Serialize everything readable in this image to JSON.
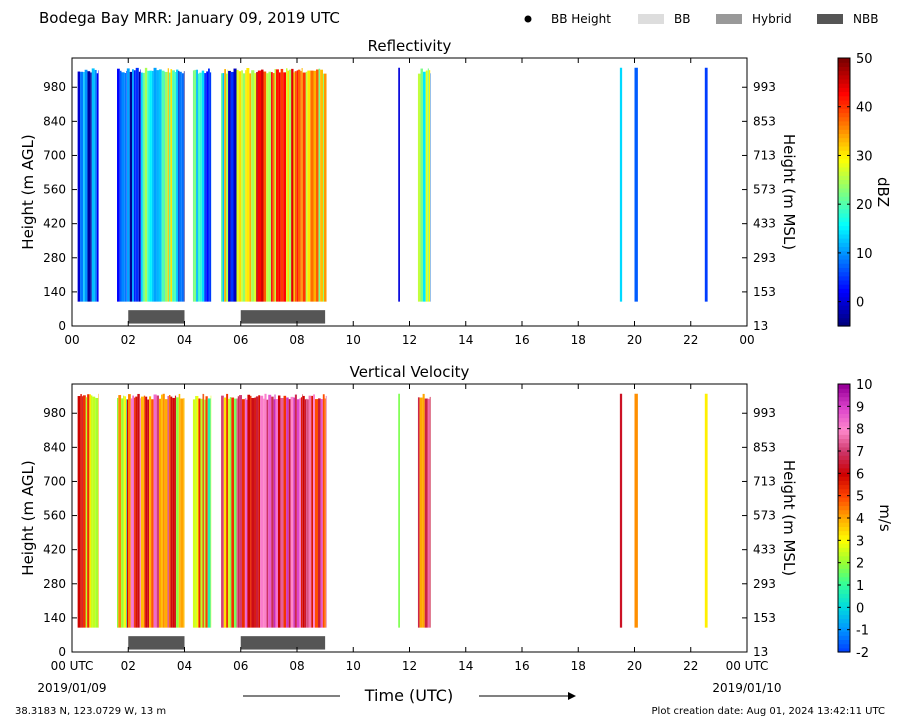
{
  "header": {
    "title": "Bodega Bay MRR:  January 09, 2019 UTC",
    "legend": [
      {
        "name": "BB Height",
        "kind": "dot",
        "color": "#000000"
      },
      {
        "name": "BB",
        "kind": "box",
        "color": "#dddddd"
      },
      {
        "name": "Hybrid",
        "kind": "box",
        "color": "#999999"
      },
      {
        "name": "NBB",
        "kind": "box",
        "color": "#555555"
      }
    ]
  },
  "footer": {
    "location": "38.3183 N, 123.0729 W, 13 m",
    "created": "Plot creation date: Aug 01, 2024 13:42:11 UTC",
    "xlabel": "Time (UTC)",
    "start_date": "2019/01/09",
    "end_date": "2019/01/10"
  },
  "chart_data": [
    {
      "type": "heatmap",
      "title": "Reflectivity",
      "ylabel": "Height (m AGL)",
      "ylabel_right": "Height (m MSL)",
      "colorbar_label": "dBZ",
      "xlim": [
        0,
        24
      ],
      "ylim": [
        0,
        1100
      ],
      "x_ticks": [
        "00",
        "02",
        "04",
        "06",
        "08",
        "10",
        "12",
        "14",
        "16",
        "18",
        "20",
        "22",
        "00"
      ],
      "y_ticks": [
        0,
        140,
        280,
        420,
        560,
        700,
        840,
        980
      ],
      "y_ticks_right": [
        "13",
        "153",
        "293",
        "433",
        "573",
        "713",
        "853",
        "993"
      ],
      "colorbar_range": [
        -5,
        50
      ],
      "colorbar_ticks": [
        0,
        10,
        20,
        30,
        40,
        50
      ],
      "colormap": [
        "#00007f",
        "#0000ff",
        "#007fff",
        "#00ffff",
        "#7fff7f",
        "#ffff00",
        "#ff7f00",
        "#ff0000",
        "#7f0000"
      ],
      "data_height_range": [
        100,
        1060
      ],
      "rain_bands": [
        {
          "start": 0.2,
          "end": 0.95,
          "value": 4
        },
        {
          "start": 1.6,
          "end": 1.95,
          "value": 10
        },
        {
          "start": 1.95,
          "end": 2.45,
          "value": 6
        },
        {
          "start": 2.45,
          "end": 2.9,
          "value": 20
        },
        {
          "start": 2.9,
          "end": 3.3,
          "value": 8
        },
        {
          "start": 3.3,
          "end": 3.7,
          "value": 22
        },
        {
          "start": 3.7,
          "end": 4.0,
          "value": 4
        },
        {
          "start": 4.3,
          "end": 4.7,
          "value": 18
        },
        {
          "start": 4.7,
          "end": 4.95,
          "value": 14
        },
        {
          "start": 5.3,
          "end": 5.55,
          "value": 22
        },
        {
          "start": 5.55,
          "end": 5.85,
          "value": 4
        },
        {
          "start": 5.85,
          "end": 6.2,
          "value": 28
        },
        {
          "start": 6.2,
          "end": 7.2,
          "value": 36
        },
        {
          "start": 7.2,
          "end": 8.2,
          "value": 35
        },
        {
          "start": 8.2,
          "end": 9.05,
          "value": 33
        },
        {
          "start": 11.6,
          "end": 11.66,
          "value": -2
        },
        {
          "start": 12.3,
          "end": 12.75,
          "value": 18
        },
        {
          "start": 19.48,
          "end": 19.56,
          "value": 14
        },
        {
          "start": 20.0,
          "end": 20.12,
          "value": 6
        },
        {
          "start": 22.5,
          "end": 22.6,
          "value": 2
        }
      ],
      "bright_band": [
        {
          "start": 2.0,
          "end": 4.0,
          "type": "NBB"
        },
        {
          "start": 6.0,
          "end": 9.0,
          "type": "NBB"
        }
      ]
    },
    {
      "type": "heatmap",
      "title": "Vertical Velocity",
      "ylabel": "Height (m AGL)",
      "ylabel_right": "Height (m MSL)",
      "colorbar_label": "m/s",
      "xlim": [
        0,
        24
      ],
      "ylim": [
        0,
        1100
      ],
      "x_ticks": [
        "00 UTC",
        "02",
        "04",
        "06",
        "08",
        "10",
        "12",
        "14",
        "16",
        "18",
        "20",
        "22",
        "00 UTC"
      ],
      "y_ticks": [
        0,
        140,
        280,
        420,
        560,
        700,
        840,
        980
      ],
      "y_ticks_right": [
        "13",
        "153",
        "293",
        "433",
        "573",
        "713",
        "853",
        "993"
      ],
      "colorbar_range": [
        -2,
        10
      ],
      "colorbar_ticks": [
        -2,
        -1,
        0,
        1,
        2,
        3,
        4,
        5,
        6,
        7,
        8,
        9,
        10
      ],
      "colormap": [
        "#0044ff",
        "#0099ff",
        "#00dddd",
        "#33ff99",
        "#99ff33",
        "#ffff00",
        "#ffaa00",
        "#ff4400",
        "#cc0000",
        "#cc3366",
        "#ff88cc",
        "#dd44cc",
        "#990099"
      ],
      "data_height_range": [
        100,
        1060
      ],
      "rain_bands": [
        {
          "start": 0.2,
          "end": 0.95,
          "value": 4.5
        },
        {
          "start": 1.6,
          "end": 1.95,
          "value": 3.5
        },
        {
          "start": 1.95,
          "end": 2.45,
          "value": 6
        },
        {
          "start": 2.45,
          "end": 2.9,
          "value": 4.5
        },
        {
          "start": 2.9,
          "end": 3.3,
          "value": 6
        },
        {
          "start": 3.3,
          "end": 3.7,
          "value": 5
        },
        {
          "start": 3.7,
          "end": 4.0,
          "value": 4
        },
        {
          "start": 4.3,
          "end": 4.7,
          "value": 5
        },
        {
          "start": 4.7,
          "end": 4.95,
          "value": 3
        },
        {
          "start": 5.3,
          "end": 5.55,
          "value": 5
        },
        {
          "start": 5.55,
          "end": 5.85,
          "value": 3.5
        },
        {
          "start": 5.85,
          "end": 6.2,
          "value": 6.5
        },
        {
          "start": 6.2,
          "end": 7.2,
          "value": 7
        },
        {
          "start": 7.2,
          "end": 8.2,
          "value": 6.8
        },
        {
          "start": 8.2,
          "end": 9.05,
          "value": 6.3
        },
        {
          "start": 11.6,
          "end": 11.66,
          "value": 1.5
        },
        {
          "start": 12.3,
          "end": 12.75,
          "value": 5.5
        },
        {
          "start": 19.48,
          "end": 19.56,
          "value": 5.8
        },
        {
          "start": 20.0,
          "end": 20.12,
          "value": 4
        },
        {
          "start": 22.5,
          "end": 22.6,
          "value": 2.8
        }
      ],
      "bright_band": [
        {
          "start": 2.0,
          "end": 4.0,
          "type": "NBB"
        },
        {
          "start": 6.0,
          "end": 9.0,
          "type": "NBB"
        }
      ]
    }
  ]
}
